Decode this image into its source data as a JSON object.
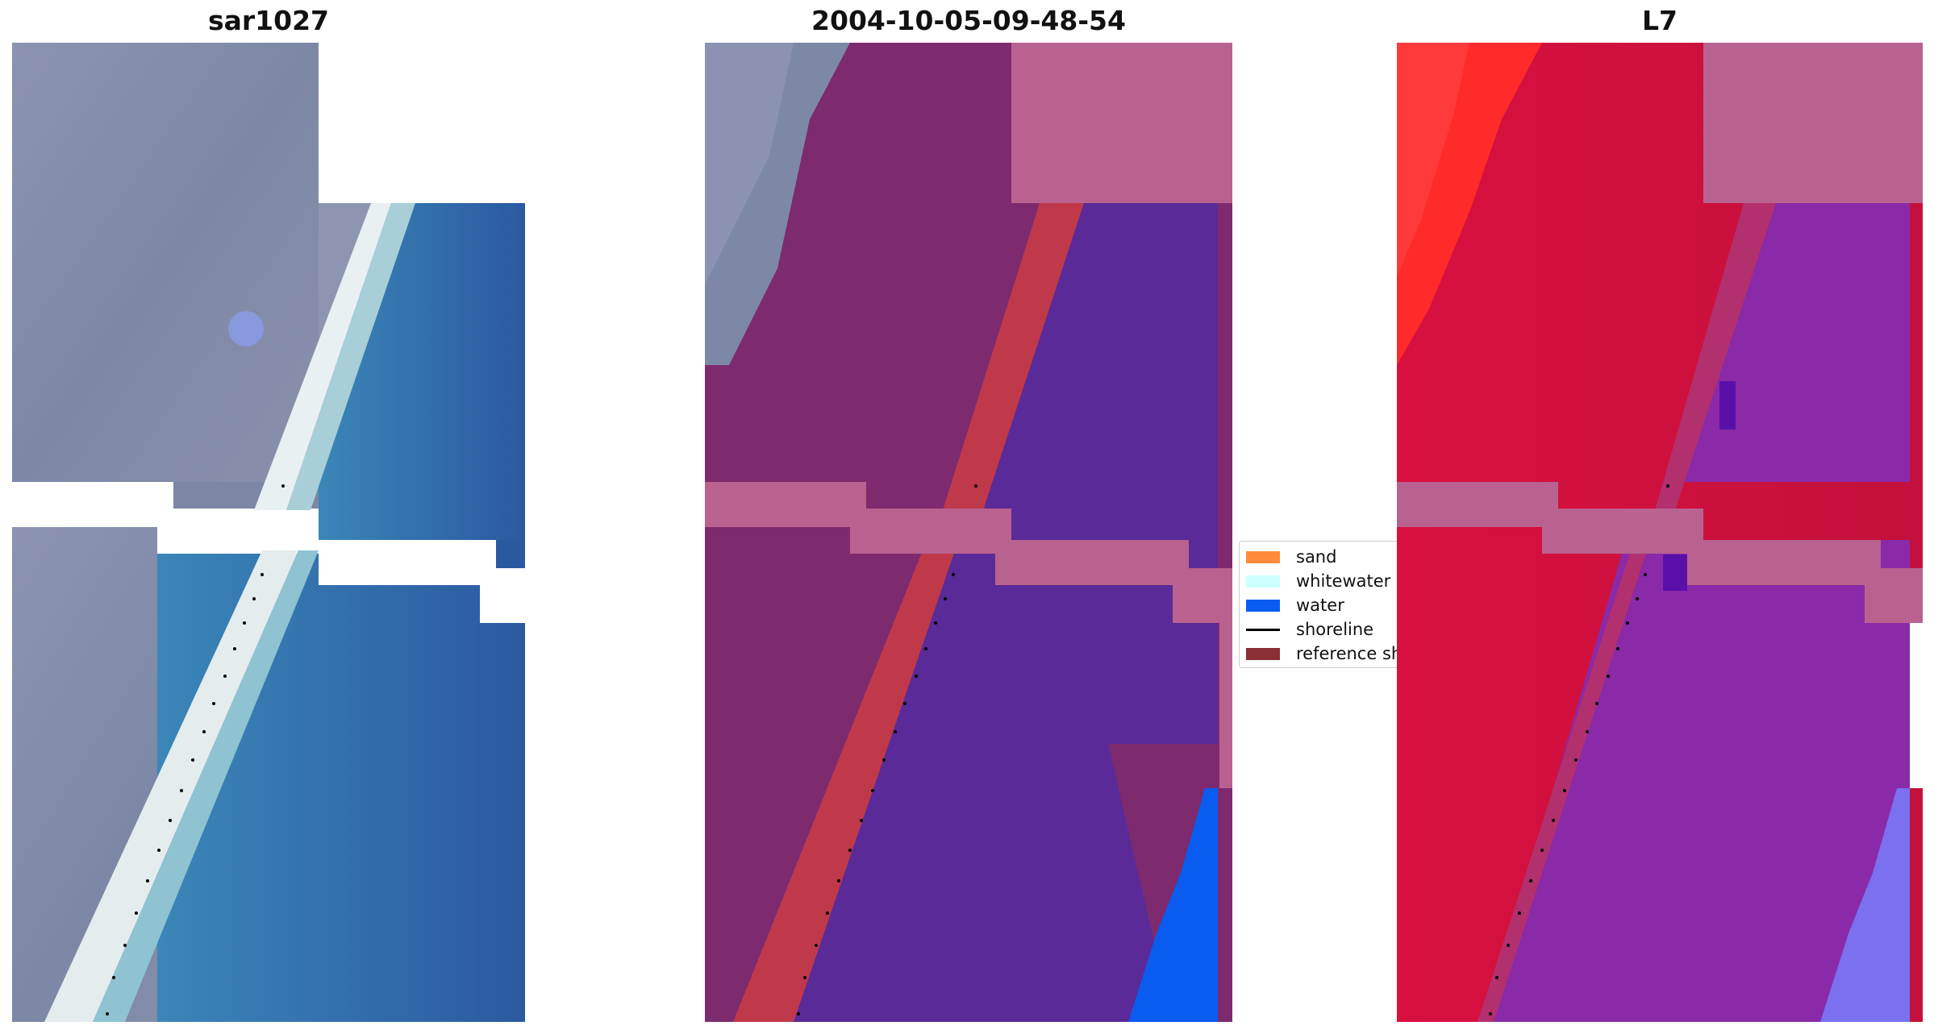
{
  "panels": [
    {
      "id": "rgb",
      "title": "sar1027"
    },
    {
      "id": "classified",
      "title": "2004-10-05-09-48-54"
    },
    {
      "id": "index",
      "title": "L7"
    }
  ],
  "legend": {
    "items": [
      {
        "label": "sand",
        "color": "#ff8c3a",
        "kind": "patch"
      },
      {
        "label": "whitewater",
        "color": "#ccffff",
        "kind": "patch"
      },
      {
        "label": "water",
        "color": "#0a5cf0",
        "kind": "patch"
      },
      {
        "label": "shoreline",
        "color": "#000000",
        "kind": "line"
      },
      {
        "label": "reference sh",
        "color": "#8b2e35",
        "kind": "patch"
      }
    ]
  },
  "colors": {
    "land_rgb": "#7f89a8",
    "water_rgb": "#2f6fa8",
    "surf_rgb": "#e8f0f2",
    "land_class": "#7e2a6e",
    "water_class": "#5a2a98",
    "nodata": "#b9628f",
    "ref_shoreline": "#c0394a",
    "water_bright": "#0a5cf0",
    "index_land": "#c8103c",
    "index_water": "#8a2aa8",
    "index_bright_red": "#ff2a2a",
    "index_blue": "#7a70f0"
  }
}
